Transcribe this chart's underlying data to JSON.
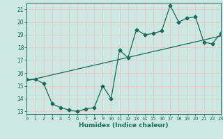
{
  "xlabel": "Humidex (Indice chaleur)",
  "bg_color": "#cce8e0",
  "grid_color": "#e8c8c8",
  "line_color": "#1a6b5a",
  "xlim": [
    0,
    23
  ],
  "ylim": [
    12.8,
    21.5
  ],
  "xticks": [
    0,
    1,
    2,
    3,
    4,
    5,
    6,
    7,
    8,
    9,
    10,
    11,
    12,
    13,
    14,
    15,
    16,
    17,
    18,
    19,
    20,
    21,
    22,
    23
  ],
  "yticks": [
    13,
    14,
    15,
    16,
    17,
    18,
    19,
    20,
    21
  ],
  "line1_x": [
    0,
    1,
    2,
    3,
    4,
    5,
    6,
    7,
    8,
    9,
    10,
    11,
    12,
    13,
    14,
    15,
    16,
    17,
    18,
    19,
    20,
    21,
    22,
    23
  ],
  "line1_y": [
    15.5,
    15.5,
    15.2,
    13.6,
    13.3,
    13.1,
    13.0,
    13.2,
    13.3,
    15.0,
    14.0,
    17.8,
    17.2,
    19.4,
    19.0,
    19.1,
    19.3,
    21.3,
    20.0,
    20.3,
    20.4,
    18.4,
    18.3,
    19.1
  ],
  "trend_x": [
    0,
    23
  ],
  "trend_y": [
    15.4,
    18.9
  ],
  "marker_size": 2.5,
  "linewidth": 0.9
}
